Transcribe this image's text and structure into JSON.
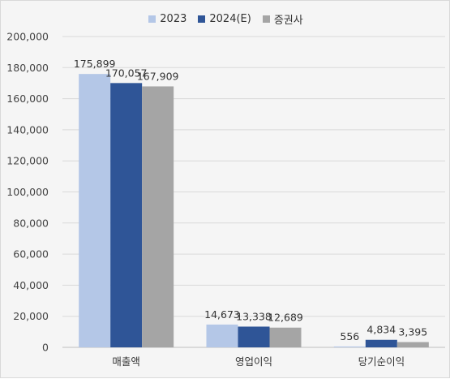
{
  "chart_data": {
    "type": "bar",
    "categories": [
      "매출액",
      "영업이익",
      "당기순이익"
    ],
    "series": [
      {
        "name": "2023",
        "color": "#b4c7e7",
        "values": [
          175899,
          14673,
          556
        ],
        "labels": [
          "175,899",
          "14,673",
          "556"
        ]
      },
      {
        "name": "2024(E)",
        "color": "#2f5597",
        "values": [
          170057,
          13338,
          4834
        ],
        "labels": [
          "170,057",
          "13,338",
          "4,834"
        ]
      },
      {
        "name": "증권사",
        "color": "#a5a5a5",
        "values": [
          167909,
          12689,
          3395
        ],
        "labels": [
          "167,909",
          "12,689",
          "3,395"
        ]
      }
    ],
    "ylim": [
      0,
      200000
    ],
    "yticks": [
      0,
      20000,
      40000,
      60000,
      80000,
      100000,
      120000,
      140000,
      160000,
      180000,
      200000
    ],
    "ytick_labels": [
      "0",
      "20,000",
      "40,000",
      "60,000",
      "80,000",
      "100,000",
      "120,000",
      "140,000",
      "160,000",
      "180,000",
      "200,000"
    ],
    "grid": true,
    "legend_position": "top-center"
  }
}
